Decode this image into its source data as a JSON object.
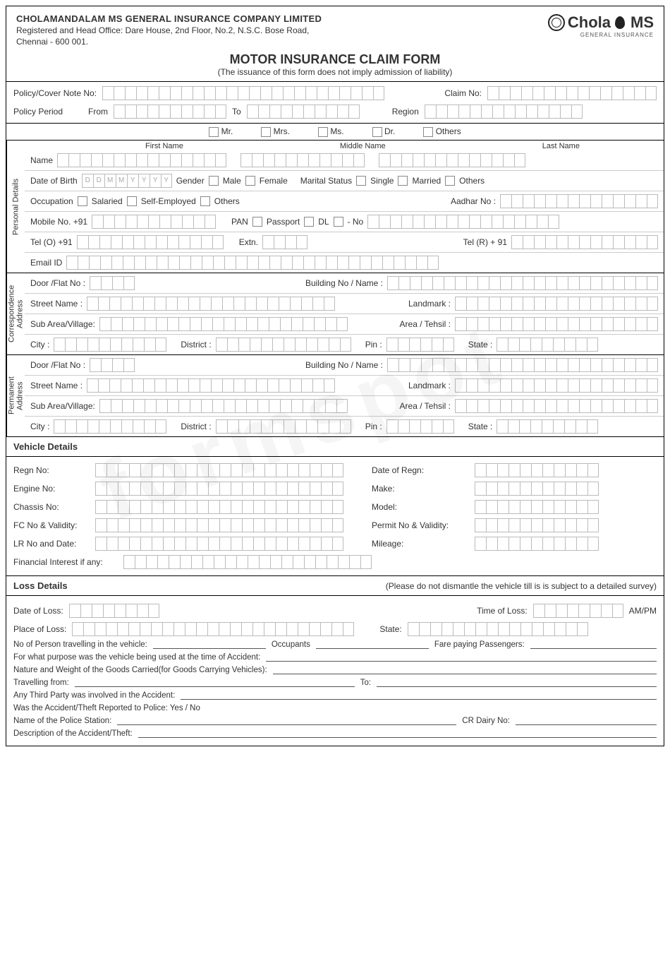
{
  "company": {
    "name": "CHOLAMANDALAM MS GENERAL INSURANCE COMPANY LIMITED",
    "address_line1": "Registered and Head Office: Dare House, 2nd Floor, No.2, N.S.C. Bose Road,",
    "address_line2": "Chennai - 600 001.",
    "logo_main": "Chola",
    "logo_suffix": "MS",
    "logo_sub": "GENERAL INSURANCE"
  },
  "form": {
    "title": "MOTOR INSURANCE CLAIM FORM",
    "subtitle": "(The issuance of this form does not imply admission of liability)"
  },
  "policy": {
    "policy_no_label": "Policy/Cover Note No:",
    "claim_no_label": "Claim No:",
    "policy_period_label": "Policy Period",
    "from_label": "From",
    "to_label": "To",
    "region_label": "Region",
    "policy_no_boxes": 25,
    "claim_no_boxes": 15,
    "from_boxes": 10,
    "to_boxes": 10,
    "region_boxes": 14
  },
  "titles": {
    "mr": "Mr.",
    "mrs": "Mrs.",
    "ms": "Ms.",
    "dr": "Dr.",
    "others": "Others"
  },
  "personal": {
    "section": "Personal Details",
    "first_name": "First Name",
    "middle_name": "Middle Name",
    "last_name": "Last Name",
    "name_label": "Name",
    "dob_label": "Date of Birth",
    "dob_placeholder": [
      "D",
      "D",
      "M",
      "M",
      "Y",
      "Y",
      "Y",
      "Y"
    ],
    "gender_label": "Gender",
    "male": "Male",
    "female": "Female",
    "marital_label": "Marital Status",
    "single": "Single",
    "married": "Married",
    "others": "Others",
    "occupation_label": "Occupation",
    "salaried": "Salaried",
    "self_employed": "Self-Employed",
    "occ_others": "Others",
    "aadhar_label": "Aadhar No :",
    "mobile_label": "Mobile No. +91",
    "pan": "PAN",
    "passport": "Passport",
    "dl": "DL",
    "dash_no": "- No",
    "tel_o_label": "Tel (O)  +91",
    "extn_label": "Extn.",
    "tel_r_label": "Tel (R)  + 91",
    "email_label": "Email ID",
    "mobile_boxes": 11,
    "idno_boxes": 17,
    "aadhar_boxes": 14,
    "tel_boxes": 13,
    "extn_boxes": 4,
    "telr_boxes": 13,
    "email_boxes": 33,
    "fn_boxes": 15,
    "mn_boxes": 11,
    "ln_boxes": 13
  },
  "address": {
    "corr_section": "Correspondence\nAddress",
    "perm_section": "Permanent\nAddress",
    "door_label": "Door /Flat No :",
    "building_label": "Building No / Name :",
    "street_label": "Street Name :",
    "landmark_label": "Landmark :",
    "subarea_label": "Sub Area/Village:",
    "tehsil_label": "Area / Tehsil :",
    "city_label": "City :",
    "district_label": "District :",
    "pin_label": "Pin :",
    "state_label": "State :",
    "door_boxes": 4,
    "building_boxes": 24,
    "street_boxes": 22,
    "landmark_boxes": 18,
    "subarea_boxes": 22,
    "tehsil_boxes": 18,
    "city_boxes": 10,
    "district_boxes": 12,
    "pin_boxes": 6,
    "state_boxes": 9
  },
  "vehicle": {
    "section": "Vehicle Details",
    "regn_label": "Regn No:",
    "date_regn_label": "Date of Regn:",
    "engine_label": "Engine No:",
    "make_label": "Make:",
    "chassis_label": "Chassis No:",
    "model_label": "Model:",
    "fc_label": "FC No & Validity:",
    "permit_label": "Permit No & Validity:",
    "lr_label": "LR No and Date:",
    "mileage_label": "Mileage:",
    "fin_label": "Financial Interest if any:",
    "left_boxes": 22,
    "right_boxes": 11
  },
  "loss": {
    "section": "Loss Details",
    "note": "(Please do not dismantle the vehicle till is is subject to a detailed survey)",
    "date_label": "Date of Loss:",
    "time_label": "Time of Loss:",
    "ampm": "AM/PM",
    "place_label": "Place of Loss:",
    "state_label": "State:",
    "persons_label": "No of Person travelling in the vehicle:",
    "occupants_label": "Occupants",
    "passengers_label": "Fare paying Passengers:",
    "purpose_label": "For what purpose was the vehicle being used at the time of Accident:",
    "goods_label": "Nature and Weight of the Goods Carried(for Goods Carrying Vehicles):",
    "travelling_from_label": "Travelling from:",
    "to_label": "To:",
    "third_party_label": "Any Third Party was involved in the Accident:",
    "reported_label": "Was the Accident/Theft Reported to Police:   Yes / No",
    "station_label": "Name of the Police Station:",
    "cr_dairy_label": "CR Dairy No:",
    "description_label": "Description of the Accident/Theft:",
    "date_boxes": 8,
    "time_boxes": 8,
    "place_boxes": 25,
    "state_boxes": 16
  },
  "colors": {
    "border": "#000000",
    "box_border": "#bbbbbb",
    "text": "#333333"
  }
}
